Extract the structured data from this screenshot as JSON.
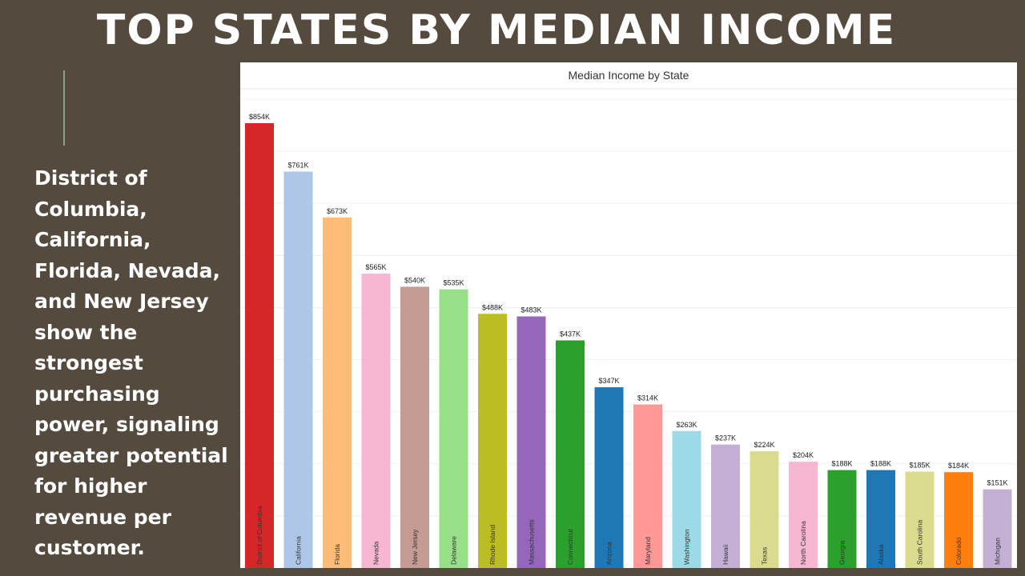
{
  "slide": {
    "title": "TOP STATES BY MEDIAN INCOME",
    "body_text": "District of Columbia, California, Florida, Nevada, and New Jersey show the strongest purchasing power, signaling greater potential for higher revenue per customer."
  },
  "colors": {
    "background": "#554a3e",
    "title_text": "#ffffff",
    "accent_line": "#8fa08a",
    "chart_background": "#ffffff"
  },
  "chart_data": {
    "type": "bar",
    "title": "Median Income by State",
    "xlabel": "",
    "ylabel": "",
    "ylim": [
      0,
      900000
    ],
    "grid": true,
    "categories": [
      "District of Columbia",
      "California",
      "Florida",
      "Nevada",
      "New Jersey",
      "Delaware",
      "Rhode Island",
      "Massachusetts",
      "Connecticut",
      "Arizona",
      "Maryland",
      "Washington",
      "Hawaii",
      "Texas",
      "North Carolina",
      "Georgia",
      "Alaska",
      "South Carolina",
      "Colorado",
      "Michigan"
    ],
    "values": [
      854000,
      761000,
      673000,
      565000,
      540000,
      535000,
      488000,
      483000,
      437000,
      347000,
      314000,
      263000,
      237000,
      224000,
      204000,
      188000,
      188000,
      185000,
      184000,
      151000
    ],
    "value_labels": [
      "$854K",
      "$761K",
      "$673K",
      "$565K",
      "$540K",
      "$535K",
      "$488K",
      "$483K",
      "$437K",
      "$347K",
      "$314K",
      "$263K",
      "$237K",
      "$224K",
      "$204K",
      "$188K",
      "$188K",
      "$185K",
      "$184K",
      "$151K"
    ],
    "bar_colors": [
      "#d62728",
      "#aec7e8",
      "#ffbb78",
      "#f7b6d2",
      "#c49c94",
      "#98df8a",
      "#bcbd22",
      "#9467bd",
      "#2ca02c",
      "#1f77b4",
      "#ff9896",
      "#9edae5",
      "#c5b0d5",
      "#dbdb8d",
      "#f7b6d2",
      "#2ca02c",
      "#1f77b4",
      "#dbdb8d",
      "#ff7f0e",
      "#c5b0d5"
    ]
  }
}
